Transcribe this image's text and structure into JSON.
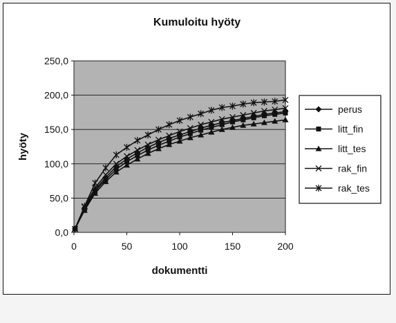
{
  "chart_data": {
    "type": "line",
    "title": "Kumuloitu hyöty",
    "xlabel": "dokumentti",
    "ylabel": "hyöty",
    "xlim": [
      0,
      200
    ],
    "ylim": [
      0,
      250
    ],
    "xticks": [
      "0",
      "50",
      "100",
      "150",
      "200"
    ],
    "yticks": [
      "0,0",
      "50,0",
      "100,0",
      "150,0",
      "200,0",
      "250,0"
    ],
    "grid": "horizontal",
    "legend_position": "right",
    "x": [
      1,
      10,
      20,
      30,
      40,
      50,
      60,
      70,
      80,
      90,
      100,
      110,
      120,
      130,
      140,
      150,
      160,
      170,
      180,
      190,
      200
    ],
    "series": [
      {
        "name": "perus",
        "marker": "diamond",
        "values": [
          5,
          35,
          62,
          80,
          96,
          107,
          116,
          124,
          131,
          137,
          142,
          147,
          152,
          156,
          160,
          163,
          166,
          169,
          172,
          174,
          176
        ]
      },
      {
        "name": "litt_fin",
        "marker": "square",
        "values": [
          5,
          34,
          60,
          77,
          92,
          103,
          112,
          120,
          127,
          133,
          139,
          144,
          149,
          153,
          157,
          161,
          164,
          167,
          170,
          172,
          174
        ]
      },
      {
        "name": "litt_tes",
        "marker": "triangle",
        "values": [
          5,
          32,
          57,
          74,
          88,
          98,
          107,
          115,
          122,
          128,
          133,
          138,
          142,
          146,
          150,
          153,
          156,
          158,
          160,
          162,
          164
        ]
      },
      {
        "name": "rak_fin",
        "marker": "x",
        "values": [
          5,
          37,
          65,
          84,
          100,
          111,
          120,
          128,
          135,
          141,
          147,
          152,
          157,
          161,
          165,
          168,
          171,
          174,
          177,
          179,
          181
        ]
      },
      {
        "name": "rak_tes",
        "marker": "star",
        "values": [
          5,
          38,
          72,
          94,
          113,
          124,
          134,
          142,
          150,
          157,
          163,
          168,
          173,
          178,
          182,
          184,
          187,
          189,
          190,
          191,
          193
        ]
      }
    ],
    "colors": {
      "plot_background": "#b3b3b3",
      "line": "#111111",
      "gridline": "#111111"
    }
  }
}
